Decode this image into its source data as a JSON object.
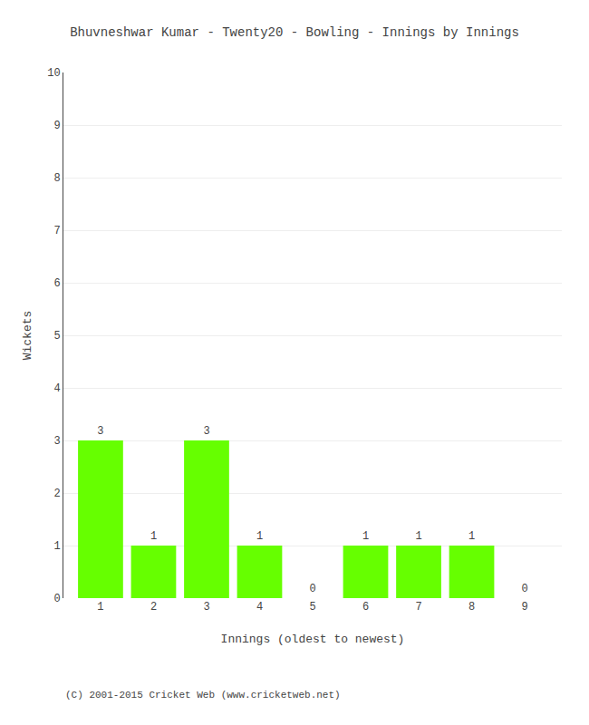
{
  "chart_data": {
    "type": "bar",
    "title": "Bhuvneshwar Kumar - Twenty20 - Bowling - Innings by Innings",
    "xlabel": "Innings (oldest to newest)",
    "ylabel": "Wickets",
    "categories": [
      "1",
      "2",
      "3",
      "4",
      "5",
      "6",
      "7",
      "8",
      "9"
    ],
    "values": [
      3,
      1,
      3,
      1,
      0,
      1,
      1,
      1,
      0
    ],
    "color": "#66ff00",
    "ylim": [
      0,
      10
    ],
    "yticks": [
      0,
      1,
      2,
      3,
      4,
      5,
      6,
      7,
      8,
      9,
      10
    ],
    "grid": true,
    "data_labels": true,
    "annotations": [
      "(C) 2001-2015 Cricket Web (www.cricketweb.net)"
    ]
  }
}
